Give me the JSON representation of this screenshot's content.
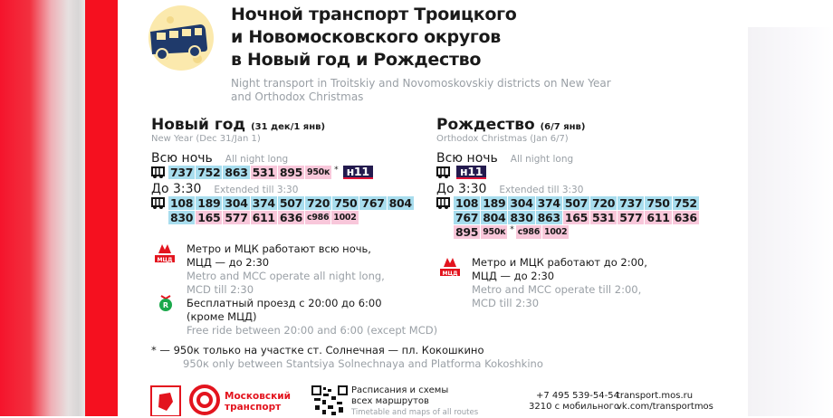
{
  "colors": {
    "blue": "#a8ddee",
    "pink": "#f8c7da",
    "night": "#231a4e",
    "red": "#f5101f"
  },
  "header": {
    "icon": "moon-bus-icon",
    "title_lines": [
      "Ночной транспорт Троицкого",
      "и Новомосковского округов",
      "в Новый год и Рождество"
    ],
    "title_en_lines": [
      "Night transport in Troitskiy and Novomoskovskiy districts on New Year",
      "and Orthodox Christmas"
    ]
  },
  "new_year": {
    "title": "Новый год",
    "dates": "(31 дек/1 янв)",
    "subtitle": "New Year (Dec 31/Jan 1)",
    "all_night": {
      "label": "Всю ночь",
      "label_en": "All night long",
      "rows": [
        [
          {
            "l": "737",
            "c": "blue"
          },
          {
            "l": "752",
            "c": "blue"
          },
          {
            "l": "863",
            "c": "blue"
          },
          {
            "l": "531",
            "c": "pink"
          },
          {
            "l": "895",
            "c": "pink"
          },
          {
            "l": "950к",
            "c": "pink",
            "s": true
          },
          {
            "l": "*",
            "c": "star"
          },
          {
            "l": "н11",
            "c": "night"
          }
        ]
      ]
    },
    "extended": {
      "label": "До 3:30",
      "label_en": "Extended till 3:30",
      "rows": [
        [
          {
            "l": "108",
            "c": "blue"
          },
          {
            "l": "189",
            "c": "blue"
          },
          {
            "l": "304",
            "c": "blue"
          },
          {
            "l": "374",
            "c": "blue"
          },
          {
            "l": "507",
            "c": "blue"
          },
          {
            "l": "720",
            "c": "blue"
          },
          {
            "l": "750",
            "c": "blue"
          },
          {
            "l": "767",
            "c": "blue"
          },
          {
            "l": "804",
            "c": "blue"
          }
        ],
        [
          {
            "l": "830",
            "c": "blue"
          },
          {
            "l": "165",
            "c": "pink"
          },
          {
            "l": "577",
            "c": "pink"
          },
          {
            "l": "611",
            "c": "pink"
          },
          {
            "l": "636",
            "c": "pink"
          },
          {
            "l": "с986",
            "c": "pink",
            "s": true
          },
          {
            "l": "1002",
            "c": "pink",
            "s": true
          }
        ]
      ]
    },
    "metro": {
      "line1": "Метро и МЦК работают всю ночь,",
      "line2": "МЦД — до 2:30",
      "en1": "Metro and MCC operate all night long,",
      "en2": "MCD till 2:30"
    },
    "free": {
      "line1": "Бесплатный проезд с 20:00 до 6:00",
      "line2": "(кроме МЦД)",
      "en": "Free ride between 20:00 and 6:00 (except MCD)"
    }
  },
  "christmas": {
    "title": "Рождество",
    "dates": "(6/7 янв)",
    "subtitle": "Orthodox Christmas (Jan 6/7)",
    "all_night": {
      "label": "Всю ночь",
      "label_en": "All night long",
      "rows": [
        [
          {
            "l": "н11",
            "c": "night"
          }
        ]
      ]
    },
    "extended": {
      "label": "До 3:30",
      "label_en": "Extended till 3:30",
      "rows": [
        [
          {
            "l": "108",
            "c": "blue"
          },
          {
            "l": "189",
            "c": "blue"
          },
          {
            "l": "304",
            "c": "blue"
          },
          {
            "l": "374",
            "c": "blue"
          },
          {
            "l": "507",
            "c": "blue"
          },
          {
            "l": "720",
            "c": "blue"
          },
          {
            "l": "737",
            "c": "blue"
          },
          {
            "l": "750",
            "c": "blue"
          },
          {
            "l": "752",
            "c": "blue"
          }
        ],
        [
          {
            "l": "767",
            "c": "blue"
          },
          {
            "l": "804",
            "c": "blue"
          },
          {
            "l": "830",
            "c": "blue"
          },
          {
            "l": "863",
            "c": "blue"
          },
          {
            "l": "165",
            "c": "pink"
          },
          {
            "l": "531",
            "c": "pink"
          },
          {
            "l": "577",
            "c": "pink"
          },
          {
            "l": "611",
            "c": "pink"
          },
          {
            "l": "636",
            "c": "pink"
          }
        ],
        [
          {
            "l": "895",
            "c": "pink"
          },
          {
            "l": "950к",
            "c": "pink",
            "s": true
          },
          {
            "l": "*",
            "c": "star"
          },
          {
            "l": "с986",
            "c": "pink",
            "s": true
          },
          {
            "l": "1002",
            "c": "pink",
            "s": true
          }
        ]
      ]
    },
    "metro": {
      "line1": "Метро и МЦК работают до 2:00,",
      "line2": "МЦД — до 2:30",
      "en1": "Metro and MCC operate till 2:00,",
      "en2": "MCD till 2:30"
    }
  },
  "footnote": {
    "mark": "* —",
    "text": "950к только на участке ст. Солнечная — пл. Кокошкино",
    "en": "950к only between Stantsiya Solnechnaya and Platforma Kokoshkino"
  },
  "footer": {
    "brand_line1": "Московский",
    "brand_line2": "транспорт",
    "schedule_line1": "Расписания и схемы",
    "schedule_line2": "всех маршрутов",
    "schedule_en": "Timetable and maps of all routes",
    "phone": "+7 495 539-54-54",
    "short_number": "3210 с мобильного",
    "site": "transport.mos.ru",
    "vk": "vk.com/transportmos"
  }
}
